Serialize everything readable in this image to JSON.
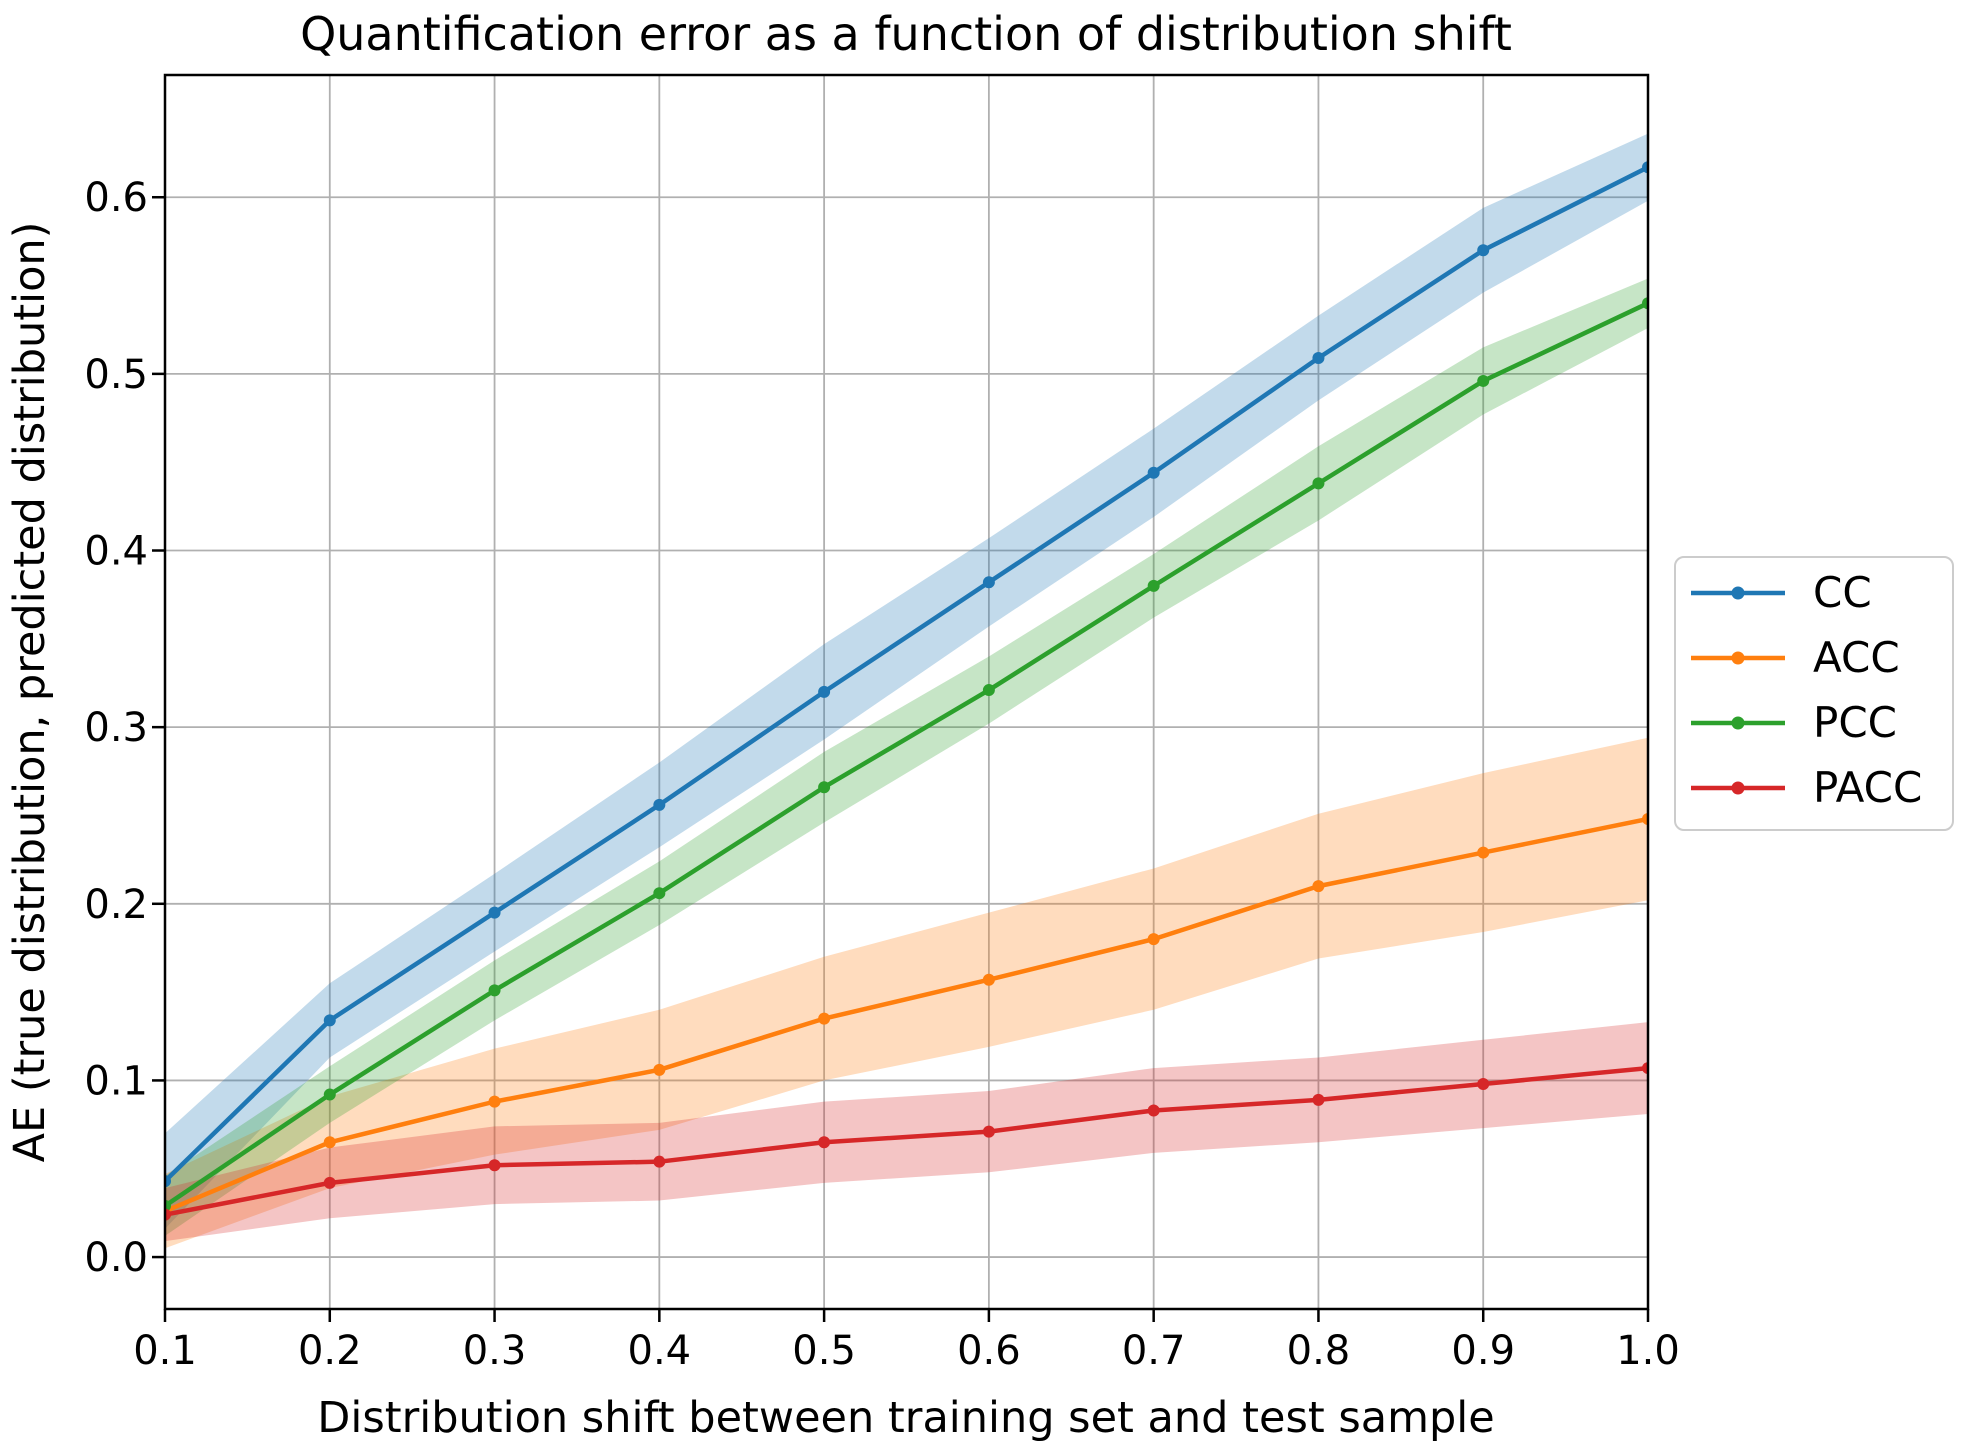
{
  "figure": {
    "background": "#ffffff",
    "grid_color": "#b0b0b0",
    "spine_color": "#000000",
    "legend_border_color": "#cccccc"
  },
  "chart_data": {
    "type": "line",
    "title": "Quantification error as a function of distribution shift",
    "xlabel": "Distribution shift between training set and test sample",
    "ylabel": "AE (true distribution, predicted distribution)",
    "x": [
      0.1,
      0.2,
      0.3,
      0.4,
      0.5,
      0.6,
      0.7,
      0.8,
      0.9,
      1.0
    ],
    "x_tick_labels": [
      "0.1",
      "0.2",
      "0.3",
      "0.4",
      "0.5",
      "0.6",
      "0.7",
      "0.8",
      "0.9",
      "1.0"
    ],
    "y_ticks": [
      0.0,
      0.1,
      0.2,
      0.3,
      0.4,
      0.5,
      0.6
    ],
    "y_tick_labels": [
      "0.0",
      "0.1",
      "0.2",
      "0.3",
      "0.4",
      "0.5",
      "0.6"
    ],
    "xlim": [
      0.1,
      1.0
    ],
    "ylim": [
      -0.0294,
      0.6692
    ],
    "grid": true,
    "legend": {
      "position": "center-right-outside",
      "entries": [
        "CC",
        "ACC",
        "PCC",
        "PACC"
      ]
    },
    "series": [
      {
        "name": "CC",
        "color": "#1f77b4",
        "values": [
          0.043,
          0.134,
          0.195,
          0.256,
          0.32,
          0.382,
          0.444,
          0.509,
          0.57,
          0.617
        ],
        "band_halfwidth": [
          0.027,
          0.021,
          0.022,
          0.024,
          0.027,
          0.025,
          0.025,
          0.024,
          0.024,
          0.019
        ]
      },
      {
        "name": "ACC",
        "color": "#ff7f0e",
        "values": [
          0.026,
          0.065,
          0.088,
          0.106,
          0.135,
          0.157,
          0.18,
          0.21,
          0.229,
          0.248
        ],
        "band_halfwidth": [
          0.021,
          0.026,
          0.03,
          0.034,
          0.035,
          0.038,
          0.04,
          0.041,
          0.045,
          0.046
        ]
      },
      {
        "name": "PCC",
        "color": "#2ca02c",
        "values": [
          0.029,
          0.092,
          0.151,
          0.206,
          0.266,
          0.321,
          0.38,
          0.438,
          0.496,
          0.54
        ],
        "band_halfwidth": [
          0.017,
          0.016,
          0.017,
          0.018,
          0.02,
          0.019,
          0.018,
          0.021,
          0.019,
          0.014
        ]
      },
      {
        "name": "PACC",
        "color": "#d62728",
        "values": [
          0.024,
          0.042,
          0.052,
          0.054,
          0.065,
          0.071,
          0.083,
          0.089,
          0.098,
          0.107
        ],
        "band_halfwidth": [
          0.015,
          0.02,
          0.022,
          0.022,
          0.023,
          0.023,
          0.024,
          0.024,
          0.025,
          0.026
        ]
      }
    ],
    "band_opacity": 0.27
  }
}
